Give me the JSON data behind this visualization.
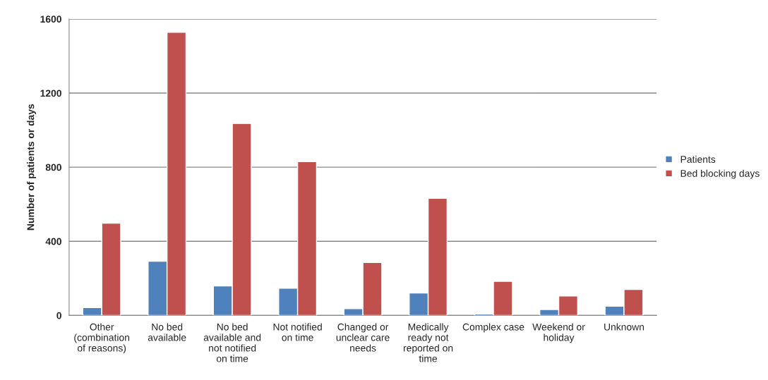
{
  "chart_data": {
    "type": "bar",
    "ylabel": "Number of patients or days",
    "categories": [
      "Other\n(combination\nof reasons)",
      "No bed\navailable",
      "No bed\navailable and\nnot notified\non time",
      "Not notified\non time",
      "Changed or\nunclear care\nneeds",
      "Medically\nready not\nreported on\ntime",
      "Complex case",
      "Weekend or\nholiday",
      "Unknown"
    ],
    "series": [
      {
        "name": "Patients",
        "color": "#4f81bd",
        "values": [
          42,
          292,
          159,
          147,
          36,
          121,
          8,
          32,
          50
        ]
      },
      {
        "name": "Bed blocking days",
        "color": "#c0504d",
        "values": [
          498,
          1528,
          1036,
          830,
          286,
          632,
          184,
          105,
          140
        ]
      }
    ],
    "ylim": [
      0,
      1600
    ],
    "yticks": [
      0,
      400,
      800,
      1200,
      1600
    ],
    "grid": "y",
    "legend": "right"
  }
}
